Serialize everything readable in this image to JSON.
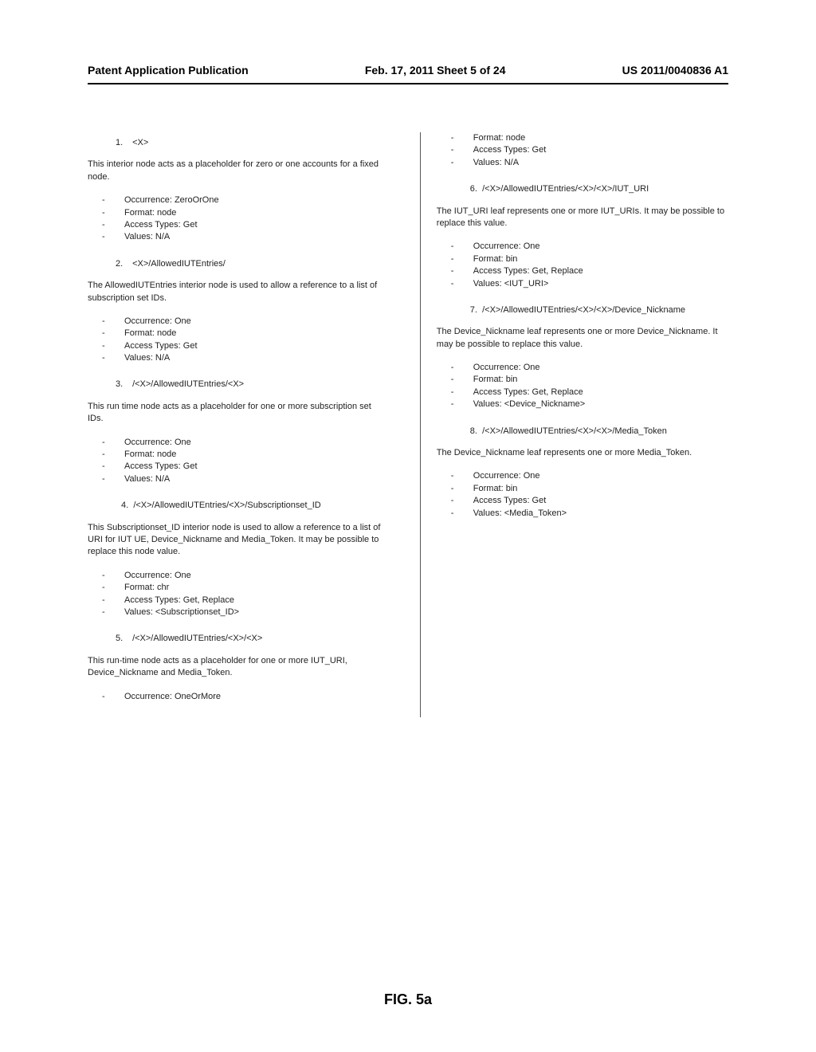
{
  "header": {
    "left": "Patent Application Publication",
    "center": "Feb. 17, 2011  Sheet 5 of 24",
    "right": "US 2011/0040836 A1"
  },
  "figure_label": "FIG. 5a",
  "sections": [
    {
      "num": "1.",
      "path": "<X>",
      "desc": "This interior node acts as a placeholder for zero or one accounts for a fixed node.",
      "props": [
        "Occurrence: ZeroOrOne",
        "Format: node",
        "Access Types: Get",
        "Values: N/A"
      ]
    },
    {
      "num": "2.",
      "path": "<X>/AllowedIUTEntries/",
      "desc": "The AllowedIUTEntries interior node is used to allow a reference to a list of subscription set IDs.",
      "props": [
        "Occurrence: One",
        "Format: node",
        "Access Types: Get",
        "Values: N/A"
      ]
    },
    {
      "num": "3.",
      "path": "/<X>/AllowedIUTEntries/<X>",
      "desc": "This run time node acts as a placeholder for one or more subscription set IDs.",
      "props": [
        "Occurrence: One",
        "Format: node",
        "Access Types: Get",
        "Values: N/A"
      ]
    },
    {
      "num": "4.",
      "path": "/<X>/AllowedIUTEntries/<X>/Subscriptionset_ID",
      "desc": "This Subscriptionset_ID interior node is used to allow a reference to a list of URI for IUT UE, Device_Nickname and Media_Token. It may be possible to replace this node value.",
      "props": [
        "Occurrence: One",
        "Format: chr",
        "Access Types: Get, Replace",
        "Values: <Subscriptionset_ID>"
      ]
    },
    {
      "num": "5.",
      "path": "/<X>/AllowedIUTEntries/<X>/<X>",
      "desc": "This run-time node acts as a placeholder for one or more IUT_URI, Device_Nickname and Media_Token.",
      "props": [
        "Occurrence: OneOrMore"
      ]
    }
  ],
  "right_lead_props": [
    "Format: node",
    "Access Types: Get",
    "Values: N/A"
  ],
  "right_sections": [
    {
      "num": "6.",
      "path": "/<X>/AllowedIUTEntries/<X>/<X>/IUT_URI",
      "desc": "The IUT_URI leaf represents one or more IUT_URIs. It may be possible to replace this value.",
      "props": [
        "Occurrence: One",
        "Format: bin",
        "Access Types: Get, Replace",
        "Values: <IUT_URI>"
      ]
    },
    {
      "num": "7.",
      "path": "/<X>/AllowedIUTEntries/<X>/<X>/Device_Nickname",
      "desc": "The Device_Nickname leaf represents one or more Device_Nickname. It may be possible to replace this value.",
      "props": [
        "Occurrence: One",
        "Format: bin",
        "Access Types: Get, Replace",
        "Values: <Device_Nickname>"
      ]
    },
    {
      "num": "8.",
      "path": "/<X>/AllowedIUTEntries/<X>/<X>/Media_Token",
      "desc": "The Device_Nickname leaf represents one or more Media_Token.",
      "props": [
        "Occurrence: One",
        "Format: bin",
        "Access Types: Get",
        "Values: <Media_Token>"
      ]
    }
  ]
}
